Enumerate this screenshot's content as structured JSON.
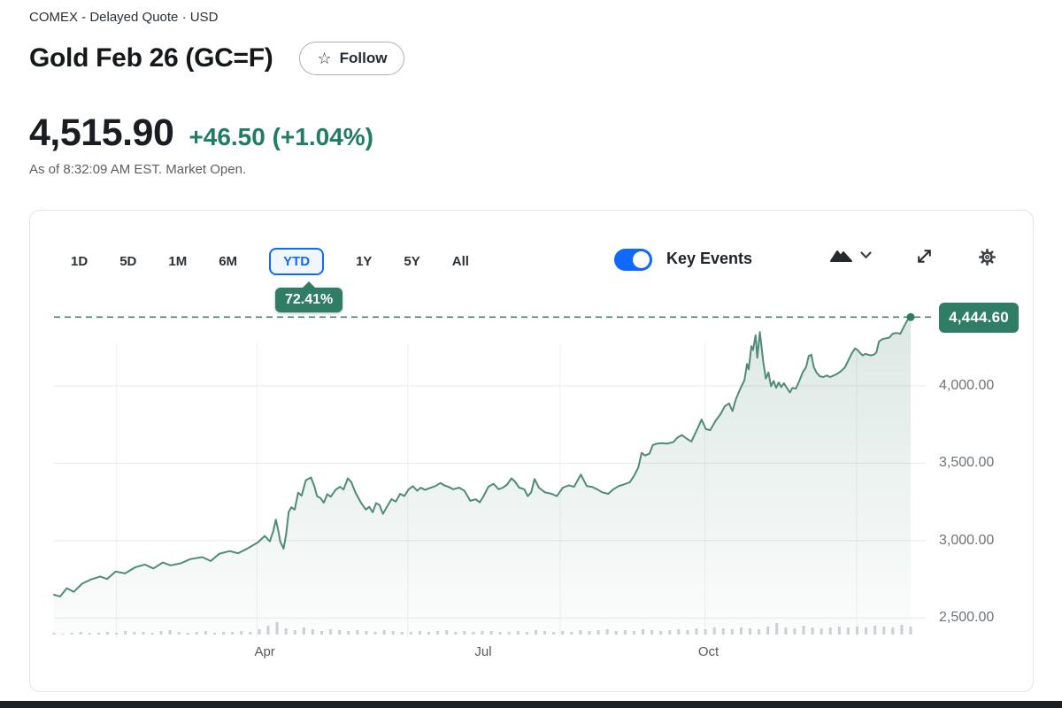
{
  "header": {
    "exchange_line": "COMEX - Delayed Quote · USD",
    "title": "Gold Feb 26 (GC=F)",
    "follow_label": "Follow",
    "price": "4,515.90",
    "change": "+46.50 (+1.04%)",
    "as_of": "As of 8:32:09 AM EST. Market Open."
  },
  "toolbar": {
    "ranges": [
      "1D",
      "5D",
      "1M",
      "6M",
      "YTD",
      "1Y",
      "5Y",
      "All"
    ],
    "active_range": "YTD",
    "key_events_label": "Key Events",
    "key_events_on": true
  },
  "chart_data": {
    "type": "area",
    "title": "Gold Feb 26 (GC=F) YTD price chart",
    "ytd_badge": "72.41%",
    "current_price": 4444.6,
    "current_price_label": "4,444.60",
    "ylim": [
      2400,
      4545
    ],
    "y_ticks": [
      {
        "value": 4000,
        "label": "4,000.00"
      },
      {
        "value": 3500,
        "label": "3,500.00"
      },
      {
        "value": 3000,
        "label": "3,000.00"
      },
      {
        "value": 2500,
        "label": "2,500.00"
      }
    ],
    "x_ticks": [
      {
        "label": "Apr",
        "f": 0.246
      },
      {
        "label": "Jul",
        "f": 0.501
      },
      {
        "label": "Oct",
        "f": 0.764
      }
    ],
    "v_gridlines_f": [
      0.073,
      0.237,
      0.413,
      0.591,
      0.76,
      0.937
    ],
    "legend": "none",
    "grid": true,
    "colors": {
      "accent_blue": "#0f69ff",
      "positive_green": "#1f7d64",
      "badge_green": "#2e7d64",
      "line": "#4f8b79",
      "fill_top": "rgba(79,139,121,0.20)",
      "fill_bottom": "rgba(79,139,121,0.02)",
      "grid_h": "#e7e9eb",
      "grid_v": "#eef0f2",
      "dashed": "#45836f",
      "volume": "#ccd1d6",
      "axis_text": "#6e7378"
    },
    "points": [
      [
        0.0,
        2650
      ],
      [
        0.007,
        2638
      ],
      [
        0.015,
        2692
      ],
      [
        0.023,
        2668
      ],
      [
        0.033,
        2722
      ],
      [
        0.043,
        2748
      ],
      [
        0.054,
        2768
      ],
      [
        0.062,
        2752
      ],
      [
        0.072,
        2800
      ],
      [
        0.083,
        2788
      ],
      [
        0.095,
        2828
      ],
      [
        0.106,
        2845
      ],
      [
        0.116,
        2820
      ],
      [
        0.127,
        2858
      ],
      [
        0.136,
        2840
      ],
      [
        0.148,
        2853
      ],
      [
        0.159,
        2880
      ],
      [
        0.173,
        2893
      ],
      [
        0.183,
        2868
      ],
      [
        0.193,
        2915
      ],
      [
        0.205,
        2932
      ],
      [
        0.215,
        2918
      ],
      [
        0.225,
        2946
      ],
      [
        0.238,
        2988
      ],
      [
        0.246,
        3030
      ],
      [
        0.252,
        2995
      ],
      [
        0.256,
        3062
      ],
      [
        0.259,
        3135
      ],
      [
        0.262,
        3060
      ],
      [
        0.264,
        2995
      ],
      [
        0.268,
        2948
      ],
      [
        0.271,
        3040
      ],
      [
        0.274,
        3185
      ],
      [
        0.277,
        3215
      ],
      [
        0.281,
        3200
      ],
      [
        0.285,
        3310
      ],
      [
        0.289,
        3290
      ],
      [
        0.294,
        3390
      ],
      [
        0.3,
        3408
      ],
      [
        0.304,
        3350
      ],
      [
        0.307,
        3288
      ],
      [
        0.311,
        3275
      ],
      [
        0.315,
        3245
      ],
      [
        0.319,
        3300
      ],
      [
        0.323,
        3283
      ],
      [
        0.329,
        3330
      ],
      [
        0.334,
        3348
      ],
      [
        0.338,
        3330
      ],
      [
        0.343,
        3402
      ],
      [
        0.347,
        3378
      ],
      [
        0.352,
        3310
      ],
      [
        0.358,
        3248
      ],
      [
        0.364,
        3200
      ],
      [
        0.368,
        3218
      ],
      [
        0.372,
        3183
      ],
      [
        0.376,
        3242
      ],
      [
        0.38,
        3230
      ],
      [
        0.384,
        3172
      ],
      [
        0.388,
        3212
      ],
      [
        0.394,
        3268
      ],
      [
        0.399,
        3252
      ],
      [
        0.404,
        3302
      ],
      [
        0.409,
        3288
      ],
      [
        0.414,
        3332
      ],
      [
        0.419,
        3352
      ],
      [
        0.424,
        3322
      ],
      [
        0.428,
        3342
      ],
      [
        0.433,
        3328
      ],
      [
        0.438,
        3338
      ],
      [
        0.445,
        3352
      ],
      [
        0.451,
        3372
      ],
      [
        0.456,
        3356
      ],
      [
        0.461,
        3346
      ],
      [
        0.466,
        3332
      ],
      [
        0.473,
        3342
      ],
      [
        0.479,
        3322
      ],
      [
        0.486,
        3257
      ],
      [
        0.492,
        3267
      ],
      [
        0.497,
        3247
      ],
      [
        0.502,
        3292
      ],
      [
        0.507,
        3347
      ],
      [
        0.513,
        3367
      ],
      [
        0.519,
        3332
      ],
      [
        0.524,
        3342
      ],
      [
        0.529,
        3362
      ],
      [
        0.534,
        3402
      ],
      [
        0.538,
        3382
      ],
      [
        0.543,
        3342
      ],
      [
        0.549,
        3332
      ],
      [
        0.553,
        3287
      ],
      [
        0.557,
        3312
      ],
      [
        0.561,
        3398
      ],
      [
        0.566,
        3342
      ],
      [
        0.573,
        3312
      ],
      [
        0.581,
        3302
      ],
      [
        0.587,
        3287
      ],
      [
        0.594,
        3342
      ],
      [
        0.601,
        3357
      ],
      [
        0.607,
        3347
      ],
      [
        0.615,
        3427
      ],
      [
        0.622,
        3352
      ],
      [
        0.628,
        3347
      ],
      [
        0.634,
        3332
      ],
      [
        0.64,
        3312
      ],
      [
        0.647,
        3302
      ],
      [
        0.653,
        3332
      ],
      [
        0.659,
        3352
      ],
      [
        0.665,
        3362
      ],
      [
        0.672,
        3377
      ],
      [
        0.677,
        3417
      ],
      [
        0.682,
        3472
      ],
      [
        0.686,
        3567
      ],
      [
        0.69,
        3550
      ],
      [
        0.695,
        3562
      ],
      [
        0.699,
        3617
      ],
      [
        0.704,
        3627
      ],
      [
        0.71,
        3630
      ],
      [
        0.716,
        3627
      ],
      [
        0.723,
        3637
      ],
      [
        0.728,
        3667
      ],
      [
        0.733,
        3682
      ],
      [
        0.739,
        3657
      ],
      [
        0.744,
        3640
      ],
      [
        0.751,
        3722
      ],
      [
        0.756,
        3782
      ],
      [
        0.761,
        3720
      ],
      [
        0.766,
        3714
      ],
      [
        0.772,
        3772
      ],
      [
        0.778,
        3817
      ],
      [
        0.783,
        3867
      ],
      [
        0.788,
        3887
      ],
      [
        0.792,
        3837
      ],
      [
        0.796,
        3914
      ],
      [
        0.802,
        3992
      ],
      [
        0.806,
        4037
      ],
      [
        0.809,
        4142
      ],
      [
        0.811,
        4107
      ],
      [
        0.814,
        4257
      ],
      [
        0.816,
        4232
      ],
      [
        0.819,
        4327
      ],
      [
        0.821,
        4182
      ],
      [
        0.824,
        4347
      ],
      [
        0.828,
        4152
      ],
      [
        0.831,
        4047
      ],
      [
        0.834,
        4087
      ],
      [
        0.837,
        3997
      ],
      [
        0.84,
        4032
      ],
      [
        0.843,
        3987
      ],
      [
        0.846,
        4022
      ],
      [
        0.849,
        3992
      ],
      [
        0.852,
        4017
      ],
      [
        0.855,
        3992
      ],
      [
        0.859,
        3957
      ],
      [
        0.862,
        3987
      ],
      [
        0.866,
        3982
      ],
      [
        0.87,
        4032
      ],
      [
        0.874,
        4087
      ],
      [
        0.878,
        4122
      ],
      [
        0.881,
        4192
      ],
      [
        0.884,
        4202
      ],
      [
        0.887,
        4122
      ],
      [
        0.89,
        4087
      ],
      [
        0.894,
        4062
      ],
      [
        0.898,
        4057
      ],
      [
        0.902,
        4067
      ],
      [
        0.906,
        4057
      ],
      [
        0.91,
        4067
      ],
      [
        0.914,
        4077
      ],
      [
        0.918,
        4092
      ],
      [
        0.923,
        4117
      ],
      [
        0.927,
        4162
      ],
      [
        0.931,
        4207
      ],
      [
        0.935,
        4242
      ],
      [
        0.938,
        4232
      ],
      [
        0.941,
        4212
      ],
      [
        0.944,
        4197
      ],
      [
        0.947,
        4207
      ],
      [
        0.95,
        4202
      ],
      [
        0.954,
        4197
      ],
      [
        0.957,
        4202
      ],
      [
        0.96,
        4217
      ],
      [
        0.963,
        4287
      ],
      [
        0.967,
        4302
      ],
      [
        0.971,
        4307
      ],
      [
        0.975,
        4312
      ],
      [
        0.979,
        4337
      ],
      [
        0.983,
        4342
      ],
      [
        0.988,
        4337
      ],
      [
        0.992,
        4382
      ],
      [
        0.996,
        4422
      ],
      [
        1.0,
        4444.6
      ]
    ],
    "volume_bars": [
      2,
      1,
      2,
      3,
      2,
      2,
      3,
      2,
      4,
      3,
      3,
      2,
      4,
      5,
      3,
      2,
      3,
      4,
      2,
      3,
      3,
      4,
      3,
      6,
      10,
      14,
      7,
      5,
      8,
      6,
      4,
      6,
      5,
      4,
      5,
      4,
      3,
      5,
      4,
      3,
      3,
      4,
      3,
      4,
      5,
      3,
      4,
      3,
      4,
      4,
      3,
      3,
      4,
      3,
      5,
      4,
      3,
      4,
      3,
      5,
      4,
      5,
      6,
      4,
      5,
      4,
      6,
      5,
      4,
      5,
      6,
      5,
      7,
      6,
      8,
      7,
      6,
      8,
      7,
      6,
      9,
      13,
      8,
      7,
      10,
      8,
      7,
      8,
      9,
      8,
      9,
      8,
      10,
      9,
      8,
      11,
      9
    ]
  }
}
